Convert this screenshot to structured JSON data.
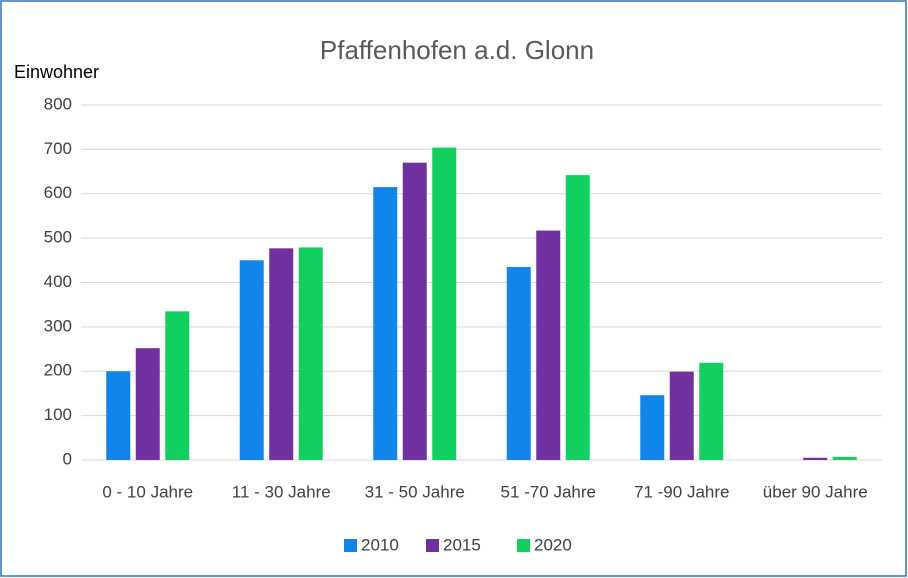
{
  "chart_data": {
    "type": "bar",
    "title": "Pfaffenhofen a.d. Glonn",
    "y_label": "Einwohner",
    "categories": [
      "0 - 10 Jahre",
      "11 - 30 Jahre",
      "31 - 50 Jahre",
      "51 -70 Jahre",
      "71 -90 Jahre",
      "über 90 Jahre"
    ],
    "series": [
      {
        "name": "2010",
        "color": "#1185ea",
        "values": [
          200,
          450,
          615,
          435,
          146,
          0
        ]
      },
      {
        "name": "2015",
        "color": "#7030a0",
        "values": [
          252,
          477,
          670,
          517,
          199,
          5
        ]
      },
      {
        "name": "2020",
        "color": "#12d060",
        "values": [
          335,
          479,
          704,
          642,
          219,
          7
        ]
      }
    ],
    "ylim": [
      0,
      800
    ],
    "yticks": [
      0,
      100,
      200,
      300,
      400,
      500,
      600,
      700,
      800
    ],
    "grid": true,
    "legend": "bottom"
  }
}
